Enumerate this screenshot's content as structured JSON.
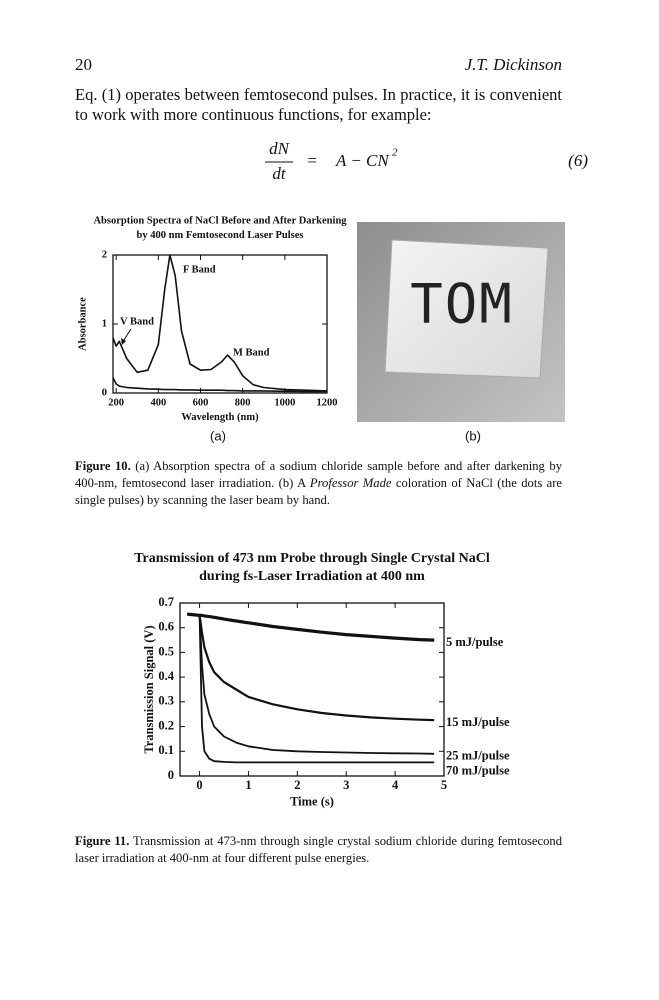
{
  "header": {
    "page_number": "20",
    "author": "J.T. Dickinson"
  },
  "paragraph": "Eq. (1) operates between femtosecond pulses. In practice, it is convenient to work with more continuous functions, for example:",
  "equation": {
    "numerator": "dN",
    "denominator": "dt",
    "equals": "=",
    "rhs": "A − CN",
    "exponent": "2",
    "number": "(6)"
  },
  "figure10": {
    "panel_a": "(a)",
    "panel_b": "(b)",
    "image_text": "TOM",
    "caption": {
      "label": "Figure 10.",
      "text_1": " (a) Absorption spectra of a sodium chloride sample before and after darkening by 400-nm, femtosecond laser irradiation. (b) A ",
      "emphasis": "Professor Made",
      "text_2": " coloration of NaCl (the dots are single pulses) by scanning the laser beam by hand."
    }
  },
  "figure11": {
    "caption": {
      "label": "Figure 11.",
      "text": " Transmission at 473-nm through single crystal sodium chloride during femtosecond laser irradiation at 400-nm at four different pulse energies."
    }
  },
  "chart_data": [
    {
      "type": "line",
      "title": "Absorption Spectra of NaCl Before and After Darkening",
      "subtitle": "by 400 nm Femtosecond Laser Pulses",
      "x_label": "Wavelength (nm)",
      "y_label": "Absorbance",
      "x": [
        185,
        200,
        215,
        250,
        300,
        350,
        400,
        430,
        455,
        480,
        510,
        550,
        600,
        650,
        700,
        728,
        760,
        800,
        850,
        900,
        1000,
        1100,
        1200
      ],
      "series": [
        {
          "color": "#111111",
          "values": [
            0.8,
            0.68,
            0.75,
            0.5,
            0.3,
            0.33,
            0.7,
            1.5,
            2.0,
            1.7,
            0.9,
            0.42,
            0.33,
            0.34,
            0.45,
            0.55,
            0.45,
            0.25,
            0.12,
            0.08,
            0.05,
            0.04,
            0.03
          ]
        },
        {
          "color": "#111111",
          "values": [
            0.22,
            0.13,
            0.1,
            0.08,
            0.07,
            0.06,
            0.055,
            0.05,
            0.05,
            0.05,
            0.045,
            0.045,
            0.04,
            0.04,
            0.04,
            0.035,
            0.035,
            0.03,
            0.03,
            0.03,
            0.025,
            0.02,
            0.02
          ]
        }
      ],
      "annotations": [
        "F Band",
        "V Band",
        "M Band"
      ],
      "xlim": [
        185,
        1200
      ],
      "xticks": [
        200,
        400,
        600,
        800,
        1000,
        1200
      ],
      "ylim": [
        0,
        2
      ],
      "yticks": [
        0,
        1,
        2
      ]
    },
    {
      "type": "line",
      "title": "Transmission of 473 nm Probe through Single Crystal NaCl",
      "subtitle": "during fs-Laser Irradiation at 400 nm",
      "x_label": "Time (s)",
      "y_label": "Transmission Signal (V)",
      "x": [
        -0.25,
        0,
        0.05,
        0.1,
        0.2,
        0.3,
        0.5,
        0.75,
        1,
        1.5,
        2,
        2.5,
        3,
        3.5,
        4,
        4.5,
        4.8
      ],
      "series": [
        {
          "name": "5 mJ/pulse",
          "color": "#111111",
          "values": [
            0.655,
            0.65,
            0.65,
            0.648,
            0.645,
            0.642,
            0.635,
            0.627,
            0.62,
            0.605,
            0.593,
            0.582,
            0.572,
            0.565,
            0.558,
            0.552,
            0.55
          ]
        },
        {
          "name": "15 mJ/pulse",
          "color": "#111111",
          "values": [
            0.655,
            0.65,
            0.58,
            0.52,
            0.46,
            0.42,
            0.38,
            0.35,
            0.32,
            0.29,
            0.27,
            0.255,
            0.245,
            0.237,
            0.232,
            0.228,
            0.226
          ]
        },
        {
          "name": "25 mJ/pulse",
          "color": "#111111",
          "values": [
            0.655,
            0.65,
            0.45,
            0.33,
            0.25,
            0.2,
            0.16,
            0.135,
            0.12,
            0.105,
            0.1,
            0.097,
            0.095,
            0.093,
            0.092,
            0.091,
            0.09
          ]
        },
        {
          "name": "70 mJ/pulse",
          "color": "#111111",
          "values": [
            0.655,
            0.65,
            0.2,
            0.1,
            0.07,
            0.06,
            0.057,
            0.055,
            0.055,
            0.055,
            0.055,
            0.055,
            0.055,
            0.055,
            0.055,
            0.055,
            0.055
          ]
        }
      ],
      "xlim": [
        -0.4,
        5
      ],
      "xticks": [
        0,
        1,
        2,
        3,
        4,
        5
      ],
      "ylim": [
        0,
        0.7
      ],
      "yticks": [
        0,
        0.1,
        0.2,
        0.3,
        0.4,
        0.5,
        0.6,
        0.7
      ]
    }
  ]
}
